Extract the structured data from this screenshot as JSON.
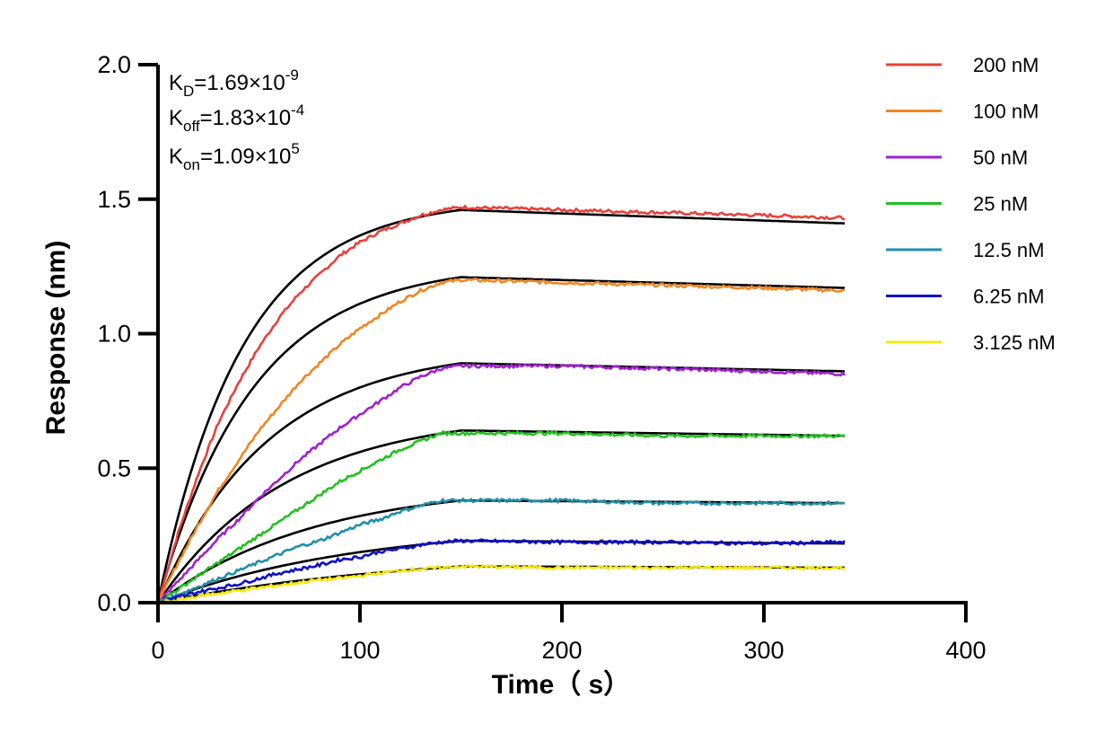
{
  "chart_data": {
    "type": "line",
    "xlabel": "Time（ s）",
    "ylabel": "Response (nm)",
    "xlim": [
      0,
      400
    ],
    "ylim": [
      0,
      2.0
    ],
    "x_ticks": [
      "0",
      "100",
      "200",
      "300",
      "400"
    ],
    "y_ticks": [
      "0.0",
      "0.5",
      "1.0",
      "1.5",
      "2.0"
    ],
    "grid": false,
    "legend_position": "top-right",
    "annotations": [
      {
        "base": "K",
        "sub": "D",
        "value": "=1.69×10",
        "exp": "-9"
      },
      {
        "base": "K",
        "sub": "off",
        "value": "=1.83×10",
        "exp": "-4"
      },
      {
        "base": "K",
        "sub": "on",
        "value": "=1.09×10",
        "exp": "5"
      }
    ],
    "association_end": 150,
    "x_end": 340,
    "fit_color": "#000000",
    "series": [
      {
        "name": "200 nM",
        "color": "#e8413c",
        "x": [
          0,
          10,
          20,
          30,
          40,
          50,
          60,
          70,
          80,
          90,
          100,
          110,
          120,
          130,
          140,
          150,
          200,
          250,
          300,
          340
        ],
        "y": [
          0,
          0.26,
          0.48,
          0.67,
          0.82,
          0.95,
          1.06,
          1.15,
          1.22,
          1.29,
          1.34,
          1.38,
          1.41,
          1.44,
          1.46,
          1.47,
          1.46,
          1.45,
          1.44,
          1.43
        ],
        "fit_end": [
          1.46,
          1.41
        ]
      },
      {
        "name": "100 nM",
        "color": "#f28522",
        "x": [
          0,
          10,
          20,
          30,
          40,
          50,
          60,
          70,
          80,
          90,
          100,
          110,
          120,
          130,
          140,
          150,
          200,
          250,
          300,
          340
        ],
        "y": [
          0,
          0.15,
          0.29,
          0.42,
          0.53,
          0.64,
          0.73,
          0.82,
          0.89,
          0.96,
          1.02,
          1.07,
          1.12,
          1.16,
          1.19,
          1.2,
          1.19,
          1.18,
          1.17,
          1.16
        ],
        "fit_end": [
          1.21,
          1.17
        ]
      },
      {
        "name": "50 nM",
        "color": "#a020d0",
        "x": [
          0,
          10,
          20,
          30,
          40,
          50,
          60,
          70,
          80,
          90,
          100,
          110,
          120,
          130,
          140,
          150,
          200,
          250,
          300,
          340
        ],
        "y": [
          0,
          0.08,
          0.16,
          0.24,
          0.31,
          0.39,
          0.46,
          0.53,
          0.59,
          0.65,
          0.7,
          0.75,
          0.8,
          0.84,
          0.87,
          0.88,
          0.88,
          0.87,
          0.86,
          0.85
        ],
        "fit_end": [
          0.89,
          0.86
        ]
      },
      {
        "name": "25 nM",
        "color": "#22c020",
        "x": [
          0,
          10,
          20,
          30,
          40,
          50,
          60,
          70,
          80,
          90,
          100,
          110,
          120,
          130,
          140,
          150,
          200,
          250,
          300,
          340
        ],
        "y": [
          0,
          0.05,
          0.1,
          0.15,
          0.2,
          0.25,
          0.3,
          0.35,
          0.4,
          0.45,
          0.49,
          0.53,
          0.57,
          0.6,
          0.63,
          0.63,
          0.63,
          0.62,
          0.62,
          0.62
        ],
        "fit_end": [
          0.64,
          0.62
        ]
      },
      {
        "name": "12.5 nM",
        "color": "#2090a8",
        "x": [
          0,
          10,
          20,
          30,
          40,
          50,
          60,
          70,
          80,
          90,
          100,
          110,
          120,
          130,
          140,
          150,
          200,
          250,
          300,
          340
        ],
        "y": [
          0,
          0.03,
          0.06,
          0.09,
          0.12,
          0.15,
          0.18,
          0.21,
          0.23,
          0.26,
          0.29,
          0.31,
          0.34,
          0.36,
          0.38,
          0.38,
          0.38,
          0.37,
          0.37,
          0.37
        ],
        "fit_end": [
          0.38,
          0.37
        ]
      },
      {
        "name": "6.25 nM",
        "color": "#1010c8",
        "x": [
          0,
          10,
          20,
          30,
          40,
          50,
          60,
          70,
          80,
          90,
          100,
          110,
          120,
          130,
          140,
          150,
          200,
          250,
          300,
          340
        ],
        "y": [
          0,
          0.02,
          0.04,
          0.055,
          0.07,
          0.09,
          0.11,
          0.125,
          0.14,
          0.16,
          0.17,
          0.19,
          0.2,
          0.215,
          0.225,
          0.23,
          0.225,
          0.225,
          0.22,
          0.225
        ],
        "fit_end": [
          0.23,
          0.22
        ]
      },
      {
        "name": "3.125 nM",
        "color": "#f5e812",
        "x": [
          0,
          10,
          20,
          30,
          40,
          50,
          60,
          70,
          80,
          90,
          100,
          110,
          120,
          130,
          140,
          150,
          200,
          250,
          300,
          340
        ],
        "y": [
          0,
          0.01,
          0.025,
          0.035,
          0.045,
          0.055,
          0.065,
          0.075,
          0.085,
          0.09,
          0.1,
          0.11,
          0.12,
          0.125,
          0.13,
          0.135,
          0.13,
          0.13,
          0.13,
          0.13
        ],
        "fit_end": [
          0.135,
          0.13
        ]
      }
    ]
  }
}
